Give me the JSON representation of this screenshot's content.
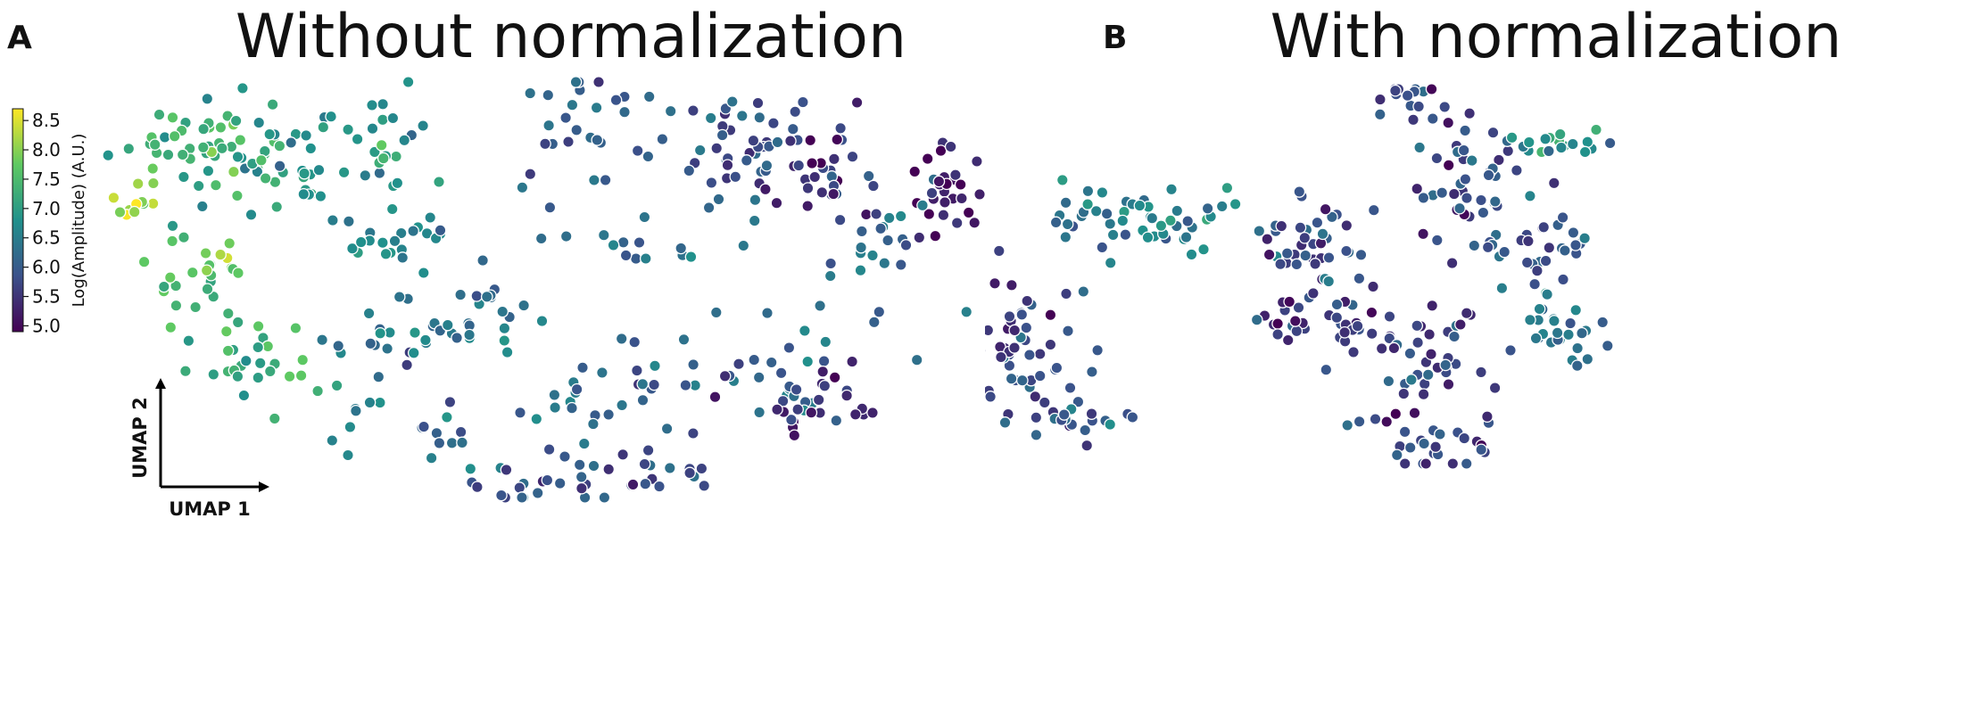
{
  "figure": {
    "panels": [
      {
        "letter": "A",
        "title": "Without normalization"
      },
      {
        "letter": "B",
        "title": "With normalization"
      }
    ]
  },
  "colors": {
    "viridis": [
      "#440154",
      "#3b528b",
      "#21918c",
      "#5ec962",
      "#fde725"
    ],
    "point_edge": "#ffffff",
    "axis": "#000000"
  },
  "chart_data": [
    {
      "type": "scatter",
      "panel": "A",
      "title": "Without normalization",
      "xlabel": "UMAP 1",
      "ylabel": "UMAP 2",
      "color_label": "Log(Amplitude) (A.U.)",
      "color_range": [
        4.9,
        8.7
      ],
      "color_ticks": [
        "8.5",
        "8.0",
        "7.5",
        "7.0",
        "6.5",
        "6.0",
        "5.5",
        "5.0"
      ],
      "seed": 17,
      "clusters": [
        {
          "cx": 0.1,
          "cy": 0.84,
          "sx": 0.035,
          "sy": 0.05,
          "n": 45,
          "c": 7.3
        },
        {
          "cx": 0.03,
          "cy": 0.72,
          "sx": 0.02,
          "sy": 0.04,
          "n": 12,
          "c": 8.2
        },
        {
          "cx": 0.1,
          "cy": 0.55,
          "sx": 0.035,
          "sy": 0.07,
          "n": 30,
          "c": 7.6
        },
        {
          "cx": 0.17,
          "cy": 0.32,
          "sx": 0.035,
          "sy": 0.05,
          "n": 26,
          "c": 7.2
        },
        {
          "cx": 0.19,
          "cy": 0.8,
          "sx": 0.035,
          "sy": 0.06,
          "n": 26,
          "c": 6.9
        },
        {
          "cx": 0.31,
          "cy": 0.86,
          "sx": 0.05,
          "sy": 0.07,
          "n": 32,
          "c": 6.8
        },
        {
          "cx": 0.33,
          "cy": 0.62,
          "sx": 0.03,
          "sy": 0.04,
          "n": 22,
          "c": 6.6
        },
        {
          "cx": 0.34,
          "cy": 0.4,
          "sx": 0.04,
          "sy": 0.05,
          "n": 24,
          "c": 6.4
        },
        {
          "cx": 0.44,
          "cy": 0.45,
          "sx": 0.04,
          "sy": 0.06,
          "n": 20,
          "c": 6.3
        },
        {
          "cx": 0.57,
          "cy": 0.88,
          "sx": 0.05,
          "sy": 0.07,
          "n": 32,
          "c": 6.1
        },
        {
          "cx": 0.74,
          "cy": 0.84,
          "sx": 0.05,
          "sy": 0.07,
          "n": 45,
          "c": 5.9
        },
        {
          "cx": 0.83,
          "cy": 0.78,
          "sx": 0.035,
          "sy": 0.06,
          "n": 28,
          "c": 5.6
        },
        {
          "cx": 0.96,
          "cy": 0.73,
          "sx": 0.018,
          "sy": 0.05,
          "n": 28,
          "c": 5.2
        },
        {
          "cx": 0.89,
          "cy": 0.64,
          "sx": 0.025,
          "sy": 0.04,
          "n": 16,
          "c": 6.3
        },
        {
          "cx": 0.61,
          "cy": 0.6,
          "sx": 0.05,
          "sy": 0.04,
          "n": 14,
          "c": 6.2
        },
        {
          "cx": 0.82,
          "cy": 0.42,
          "sx": 0.05,
          "sy": 0.09,
          "n": 18,
          "c": 6.2
        },
        {
          "cx": 0.68,
          "cy": 0.3,
          "sx": 0.06,
          "sy": 0.05,
          "n": 26,
          "c": 6.0
        },
        {
          "cx": 0.81,
          "cy": 0.22,
          "sx": 0.035,
          "sy": 0.04,
          "n": 28,
          "c": 5.4
        },
        {
          "cx": 0.53,
          "cy": 0.2,
          "sx": 0.06,
          "sy": 0.05,
          "n": 20,
          "c": 6.3
        },
        {
          "cx": 0.52,
          "cy": 0.03,
          "sx": 0.05,
          "sy": 0.03,
          "n": 22,
          "c": 6.0
        },
        {
          "cx": 0.65,
          "cy": 0.07,
          "sx": 0.03,
          "sy": 0.04,
          "n": 14,
          "c": 5.9
        },
        {
          "cx": 0.38,
          "cy": 0.14,
          "sx": 0.02,
          "sy": 0.03,
          "n": 10,
          "c": 6.2
        },
        {
          "cx": 0.3,
          "cy": 0.2,
          "sx": 0.03,
          "sy": 0.04,
          "n": 8,
          "c": 6.6
        }
      ]
    },
    {
      "type": "scatter",
      "panel": "B",
      "title": "With normalization",
      "xlabel": "UMAP 1",
      "ylabel": "UMAP 2",
      "color_label": "Log(Amplitude) (A.U.)",
      "color_range": [
        4.9,
        8.7
      ],
      "color_ticks": [
        "8.5",
        "8.0",
        "7.5",
        "7.0",
        "6.5",
        "6.0",
        "5.5",
        "5.0"
      ],
      "seed": 41,
      "clusters": [
        {
          "cx": 0.04,
          "cy": 0.22,
          "sx": 0.03,
          "sy": 0.06,
          "n": 26,
          "c": 6.4
        },
        {
          "cx": 0.14,
          "cy": 0.14,
          "sx": 0.045,
          "sy": 0.035,
          "n": 42,
          "c": 5.6
        },
        {
          "cx": 0.31,
          "cy": 0.3,
          "sx": 0.04,
          "sy": 0.1,
          "n": 55,
          "c": 5.7
        },
        {
          "cx": 0.38,
          "cy": 0.12,
          "sx": 0.035,
          "sy": 0.025,
          "n": 20,
          "c": 5.9
        },
        {
          "cx": 0.46,
          "cy": 0.65,
          "sx": 0.06,
          "sy": 0.05,
          "n": 50,
          "c": 6.5
        },
        {
          "cx": 0.64,
          "cy": 0.59,
          "sx": 0.04,
          "sy": 0.06,
          "n": 40,
          "c": 5.8
        },
        {
          "cx": 0.66,
          "cy": 0.38,
          "sx": 0.05,
          "sy": 0.06,
          "n": 42,
          "c": 5.7
        },
        {
          "cx": 0.78,
          "cy": 0.27,
          "sx": 0.04,
          "sy": 0.08,
          "n": 40,
          "c": 5.6
        },
        {
          "cx": 0.8,
          "cy": 0.05,
          "sx": 0.05,
          "sy": 0.04,
          "n": 28,
          "c": 5.7
        },
        {
          "cx": 0.91,
          "cy": 0.55,
          "sx": 0.035,
          "sy": 0.07,
          "n": 34,
          "c": 6.0
        },
        {
          "cx": 0.95,
          "cy": 0.35,
          "sx": 0.03,
          "sy": 0.05,
          "n": 24,
          "c": 6.3
        },
        {
          "cx": 0.83,
          "cy": 0.78,
          "sx": 0.035,
          "sy": 0.09,
          "n": 42,
          "c": 5.8
        },
        {
          "cx": 0.76,
          "cy": 0.98,
          "sx": 0.02,
          "sy": 0.04,
          "n": 16,
          "c": 5.9
        },
        {
          "cx": 0.94,
          "cy": 0.85,
          "sx": 0.03,
          "sy": 0.025,
          "n": 18,
          "c": 6.8
        },
        {
          "cx": 0.23,
          "cy": 0.45,
          "sx": 0.02,
          "sy": 0.03,
          "n": 8,
          "c": 6.2
        }
      ]
    }
  ]
}
